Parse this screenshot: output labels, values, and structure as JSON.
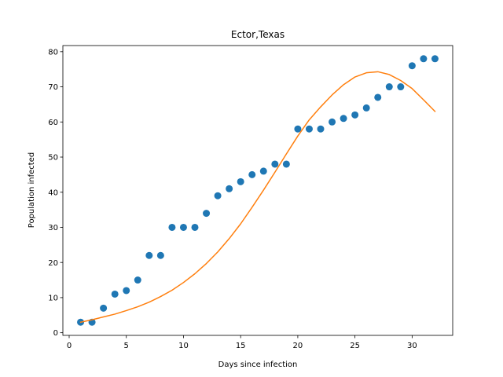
{
  "chart_data": {
    "type": "scatter",
    "title": "Ector,Texas",
    "xlabel": "Days since infection",
    "ylabel": "Population infected",
    "xlim": [
      -0.55,
      33.55
    ],
    "ylim": [
      -0.75,
      81.75
    ],
    "xticks": [
      0,
      5,
      10,
      15,
      20,
      25,
      30
    ],
    "yticks": [
      0,
      10,
      20,
      30,
      40,
      50,
      60,
      70,
      80
    ],
    "grid": false,
    "series": [
      {
        "kind": "scatter",
        "color": "#1f77b4",
        "x": [
          1,
          2,
          3,
          4,
          5,
          6,
          7,
          8,
          9,
          10,
          11,
          12,
          13,
          14,
          15,
          16,
          17,
          18,
          19,
          20,
          21,
          22,
          23,
          24,
          25,
          26,
          27,
          28,
          29,
          30,
          31,
          32
        ],
        "y": [
          3,
          3,
          7,
          11,
          12,
          15,
          22,
          22,
          30,
          30,
          30,
          34,
          39,
          41,
          43,
          45,
          46,
          48,
          48,
          58,
          58,
          58,
          60,
          61,
          62,
          64,
          67,
          70,
          70,
          76,
          78,
          78
        ]
      },
      {
        "kind": "line",
        "color": "#ff7f0e",
        "x": [
          1,
          2,
          3,
          4,
          5,
          6,
          7,
          8,
          9,
          10,
          11,
          12,
          13,
          14,
          15,
          16,
          17,
          18,
          19,
          20,
          21,
          22,
          23,
          24,
          25,
          26,
          27,
          28,
          29,
          30,
          31,
          32
        ],
        "y": [
          3.0,
          3.7,
          4.5,
          5.3,
          6.3,
          7.4,
          8.7,
          10.3,
          12.1,
          14.3,
          16.8,
          19.7,
          23.0,
          26.8,
          31.0,
          35.7,
          40.6,
          45.7,
          50.9,
          56.0,
          60.6,
          64.3,
          67.7,
          70.6,
          72.8,
          74.0,
          74.3,
          73.5,
          71.8,
          69.5,
          66.3,
          63.0
        ]
      }
    ]
  }
}
